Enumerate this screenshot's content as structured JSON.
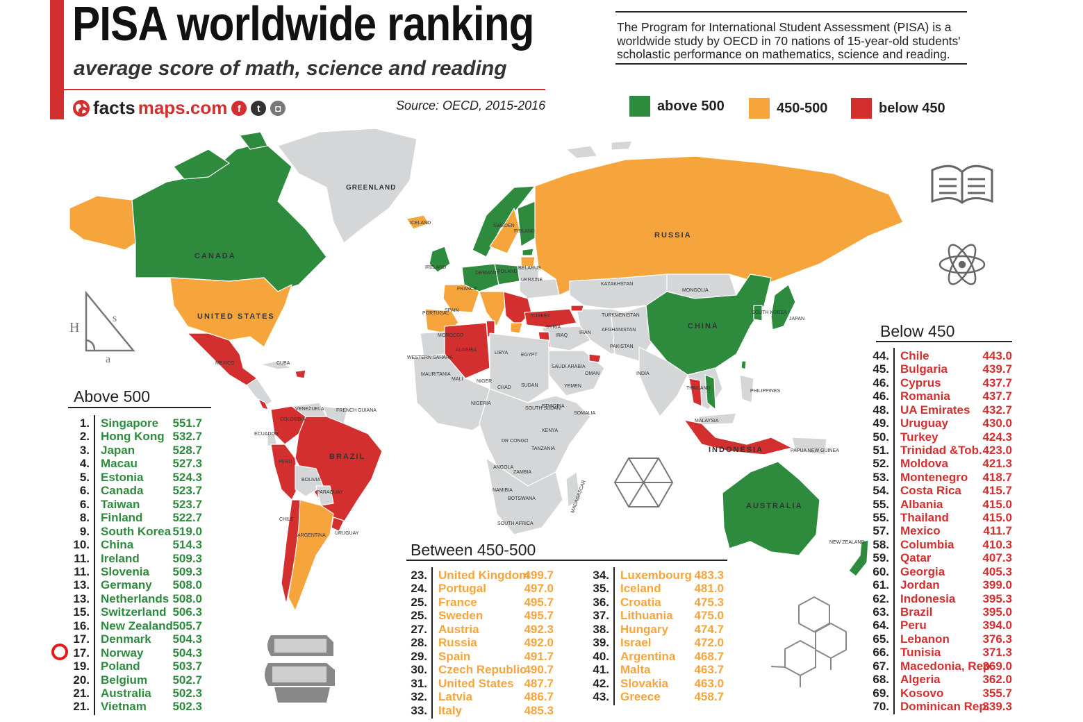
{
  "header": {
    "title": "PISA worldwide ranking",
    "subtitle": "average score of math, science and reading",
    "brand_left": "facts",
    "brand_right": "maps.com",
    "source": "Source: OECD, 2015-2016",
    "description": "The Program for International Student Assessment (PISA) is a worldwide study by OECD in 70 nations of 15-year-old students' scholastic performance on mathematics, science and reading."
  },
  "legend": [
    {
      "label": "above 500",
      "color": "#2e8b3e"
    },
    {
      "label": "450-500",
      "color": "#f6a53d"
    },
    {
      "label": "below 450",
      "color": "#d32f2f"
    }
  ],
  "colors": {
    "green": "#2e8b3e",
    "orange": "#f6a53d",
    "red": "#d32f2f",
    "gray": "#d4d6d8",
    "accent": "#d32f2f"
  },
  "panels": {
    "above": {
      "title": "Above 500",
      "rows": [
        {
          "rank": "1.",
          "name": "Singapore",
          "score": "551.7"
        },
        {
          "rank": "2.",
          "name": "Hong Kong",
          "score": "532.7"
        },
        {
          "rank": "3.",
          "name": "Japan",
          "score": "528.7"
        },
        {
          "rank": "4.",
          "name": "Macau",
          "score": "527.3"
        },
        {
          "rank": "5.",
          "name": "Estonia",
          "score": "524.3"
        },
        {
          "rank": "6.",
          "name": "Canada",
          "score": "523.7"
        },
        {
          "rank": "6.",
          "name": "Taiwan",
          "score": "523.7"
        },
        {
          "rank": "8.",
          "name": "Finland",
          "score": "522.7"
        },
        {
          "rank": "9.",
          "name": "South Korea",
          "score": "519.0"
        },
        {
          "rank": "10.",
          "name": "China",
          "score": "514.3"
        },
        {
          "rank": "11.",
          "name": "Ireland",
          "score": "509.3"
        },
        {
          "rank": "11.",
          "name": "Slovenia",
          "score": "509.3"
        },
        {
          "rank": "13.",
          "name": "Germany",
          "score": "508.0"
        },
        {
          "rank": "13.",
          "name": "Netherlands",
          "score": "508.0"
        },
        {
          "rank": "15.",
          "name": "Switzerland",
          "score": "506.3"
        },
        {
          "rank": "16.",
          "name": "New Zealand",
          "score": "505.7"
        },
        {
          "rank": "17.",
          "name": "Denmark",
          "score": "504.3"
        },
        {
          "rank": "17.",
          "name": "Norway",
          "score": "504.3"
        },
        {
          "rank": "19.",
          "name": "Poland",
          "score": "503.7"
        },
        {
          "rank": "20.",
          "name": "Belgium",
          "score": "502.7"
        },
        {
          "rank": "21.",
          "name": "Australia",
          "score": "502.3"
        },
        {
          "rank": "21.",
          "name": "Vietnam",
          "score": "502.3"
        }
      ]
    },
    "between_a": {
      "title": "Between 450-500",
      "rows": [
        {
          "rank": "23.",
          "name": "United Kingdom",
          "score": "499.7"
        },
        {
          "rank": "24.",
          "name": "Portugal",
          "score": "497.0"
        },
        {
          "rank": "25.",
          "name": "France",
          "score": "495.7"
        },
        {
          "rank": "25.",
          "name": "Sweden",
          "score": "495.7"
        },
        {
          "rank": "27.",
          "name": "Austria",
          "score": "492.3"
        },
        {
          "rank": "28.",
          "name": "Russia",
          "score": "492.0"
        },
        {
          "rank": "29.",
          "name": "Spain",
          "score": "491.7"
        },
        {
          "rank": "30.",
          "name": "Czech Republic",
          "score": "490.7"
        },
        {
          "rank": "31.",
          "name": "United States",
          "score": "487.7"
        },
        {
          "rank": "32.",
          "name": "Latvia",
          "score": "486.7"
        },
        {
          "rank": "33.",
          "name": "Italy",
          "score": "485.3"
        }
      ]
    },
    "between_b": {
      "rows": [
        {
          "rank": "34.",
          "name": "Luxembourg",
          "score": "483.3"
        },
        {
          "rank": "35.",
          "name": "Iceland",
          "score": "481.0"
        },
        {
          "rank": "36.",
          "name": "Croatia",
          "score": "475.3"
        },
        {
          "rank": "37.",
          "name": "Lithuania",
          "score": "475.0"
        },
        {
          "rank": "38.",
          "name": "Hungary",
          "score": "474.7"
        },
        {
          "rank": "39.",
          "name": "Israel",
          "score": "472.0"
        },
        {
          "rank": "40.",
          "name": "Argentina",
          "score": "468.7"
        },
        {
          "rank": "41.",
          "name": "Malta",
          "score": "463.7"
        },
        {
          "rank": "42.",
          "name": "Slovakia",
          "score": "463.0"
        },
        {
          "rank": "43.",
          "name": "Greece",
          "score": "458.7"
        }
      ]
    },
    "below": {
      "title": "Below 450",
      "rows": [
        {
          "rank": "44.",
          "name": "Chile",
          "score": "443.0"
        },
        {
          "rank": "45.",
          "name": "Bulgaria",
          "score": "439.7"
        },
        {
          "rank": "46.",
          "name": "Cyprus",
          "score": "437.7"
        },
        {
          "rank": "46.",
          "name": "Romania",
          "score": "437.7"
        },
        {
          "rank": "48.",
          "name": "UA Emirates",
          "score": "432.7"
        },
        {
          "rank": "49.",
          "name": "Uruguay",
          "score": "430.0"
        },
        {
          "rank": "50.",
          "name": "Turkey",
          "score": "424.3"
        },
        {
          "rank": "51.",
          "name": "Trinidad &Tob.",
          "score": "423.0"
        },
        {
          "rank": "52.",
          "name": "Moldova",
          "score": "421.3"
        },
        {
          "rank": "53.",
          "name": "Montenegro",
          "score": "418.7"
        },
        {
          "rank": "54.",
          "name": "Costa Rica",
          "score": "415.7"
        },
        {
          "rank": "55.",
          "name": "Albania",
          "score": "415.0"
        },
        {
          "rank": "55.",
          "name": "Thailand",
          "score": "415.0"
        },
        {
          "rank": "57.",
          "name": "Mexico",
          "score": "411.7"
        },
        {
          "rank": "58.",
          "name": "Columbia",
          "score": "410.3"
        },
        {
          "rank": "59.",
          "name": "Qatar",
          "score": "407.3"
        },
        {
          "rank": "60.",
          "name": "Georgia",
          "score": "405.3"
        },
        {
          "rank": "61.",
          "name": "Jordan",
          "score": "399.0"
        },
        {
          "rank": "62.",
          "name": "Indonesia",
          "score": "395.3"
        },
        {
          "rank": "63.",
          "name": "Brazil",
          "score": "395.0"
        },
        {
          "rank": "64.",
          "name": "Peru",
          "score": "394.0"
        },
        {
          "rank": "65.",
          "name": "Lebanon",
          "score": "376.3"
        },
        {
          "rank": "66.",
          "name": "Tunisia",
          "score": "371.3"
        },
        {
          "rank": "67.",
          "name": "Macedonia, Rep.",
          "score": "369.0"
        },
        {
          "rank": "68.",
          "name": "Algeria",
          "score": "362.0"
        },
        {
          "rank": "69.",
          "name": "Kosovo",
          "score": "355.7"
        },
        {
          "rank": "70.",
          "name": "Dominican Rep.",
          "score": "339.3"
        }
      ]
    }
  },
  "map_labels": {
    "canada": "CANADA",
    "greenland": "GREENLAND",
    "united_states": "UNITED STATES",
    "mexico": "MEXICO",
    "cuba": "CUBA",
    "colombia": "COLOMBIA",
    "venezuela": "VENEZUELA",
    "ecuador": "ECUADOR",
    "peru": "PERU",
    "brazil": "BRAZIL",
    "bolivia": "BOLIVIA",
    "paraguay": "PARAGUAY",
    "chile": "CHILE",
    "argentina": "ARGENTINA",
    "uruguay": "URUGUAY",
    "french_guiana": "FRENCH GUIANA",
    "iceland": "ICELAND",
    "ireland": "IRELAND",
    "sweden": "SWEDEN",
    "finland": "FINLAND",
    "germany": "GERMANY",
    "poland": "POLAND",
    "belarus": "BELARUS",
    "ukraine": "UKRAINE",
    "france": "FRANCE",
    "spain": "SPAIN",
    "portugal": "PORTUGAL",
    "turkey": "TURKEY",
    "russia": "RUSSIA",
    "kazakhstan": "KAZAKHSTAN",
    "mongolia": "MONGOLIA",
    "china": "CHINA",
    "japan": "JAPAN",
    "south_korea": "SOUTH KOREA",
    "morocco": "MOROCCO",
    "algeria": "ALGERIA",
    "libya": "LIBYA",
    "egypt": "EGYPT",
    "western_sahara": "WESTERN SAHARA",
    "mauritania": "MAURITANIA",
    "mali": "MALI",
    "niger": "NIGER",
    "chad": "CHAD",
    "sudan": "SUDAN",
    "south_sudan": "SOUTH SUDAN",
    "ethiopia": "ETHIOPIA",
    "somalia": "SOMALIA",
    "nigeria": "NIGERIA",
    "dr_congo": "DR CONGO",
    "kenya": "KENYA",
    "tanzania": "TANZANIA",
    "angola": "ANGOLA",
    "zambia": "ZAMBIA",
    "namibia": "NAMIBIA",
    "botswana": "BOTSWANA",
    "madagascar": "MADAGASCAR",
    "south_africa": "SOUTH AFRICA",
    "syria": "SYRIA",
    "iraq": "IRAQ",
    "iran": "IRAN",
    "saudi_arabia": "SAUDI ARABIA",
    "yemen": "YEMEN",
    "oman": "OMAN",
    "afghanistan": "AFGHANISTAN",
    "pakistan": "PAKISTAN",
    "india": "INDIA",
    "thailand": "THAILAND",
    "malaysia": "MALAYSIA",
    "philippines": "PHILIPPINES",
    "indonesia": "INDONESIA",
    "papua_new_guinea": "PAPUA NEW GUINEA",
    "australia": "AUSTRALIA",
    "new_zealand": "NEW ZEALAND",
    "turkmenistan": "TURKMENISTAN"
  },
  "icons": [
    "globe-icon",
    "facebook-icon",
    "twitter-icon",
    "instagram-icon",
    "book-icon",
    "atom-icon",
    "triangle-icon",
    "hexagon-icon",
    "books-icon",
    "molecule-icon",
    "highlight-circle-icon"
  ]
}
